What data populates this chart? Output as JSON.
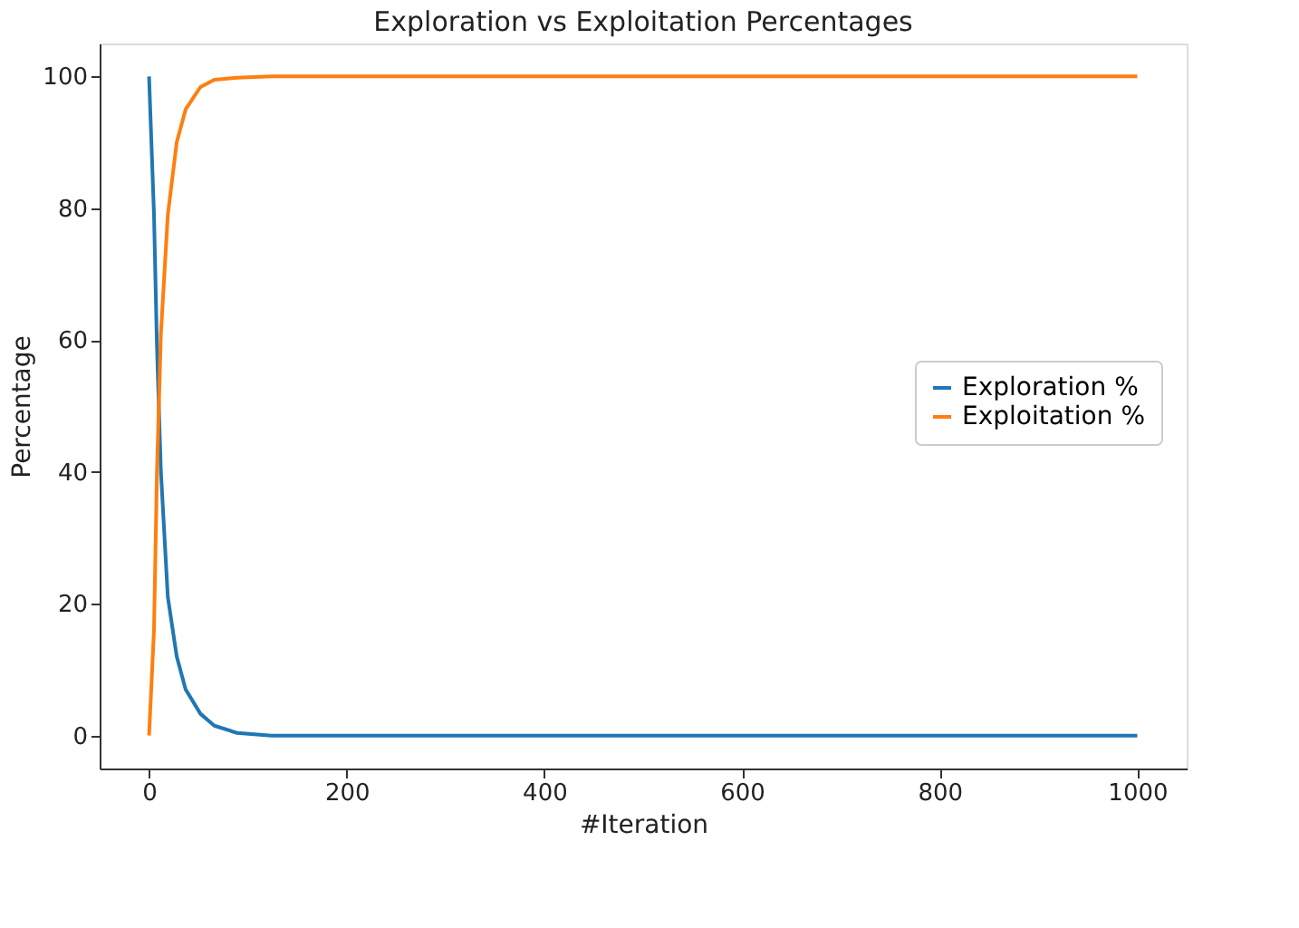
{
  "chart_data": {
    "type": "line",
    "title": "Exploration vs Exploitation Percentages",
    "xlabel": "#Iteration",
    "ylabel": "Percentage",
    "xlim": [
      -50,
      1050
    ],
    "xticks": [
      0,
      200,
      400,
      600,
      800,
      1000
    ],
    "ylim": [
      -5,
      105
    ],
    "yticks": [
      0,
      20,
      40,
      60,
      80,
      100
    ],
    "x": [
      0,
      5,
      8,
      12,
      19,
      28,
      37,
      52,
      66,
      89,
      124,
      200,
      400,
      600,
      800,
      1000
    ],
    "series": [
      {
        "name": "Exploration %",
        "color": "#1f77b4",
        "values": [
          100,
          79,
          59,
          40,
          21,
          12,
          7,
          3.3,
          1.5,
          0.4,
          0,
          0,
          0,
          0,
          0,
          0
        ]
      },
      {
        "name": "Exploitation %",
        "color": "#ff7f0e",
        "values": [
          0,
          16,
          40,
          61,
          79,
          90,
          95,
          98.4,
          99.5,
          99.8,
          100,
          100,
          100,
          100,
          100,
          100
        ]
      }
    ],
    "grid": false,
    "legend": "right",
    "marker": "none",
    "line_style": "solid"
  }
}
